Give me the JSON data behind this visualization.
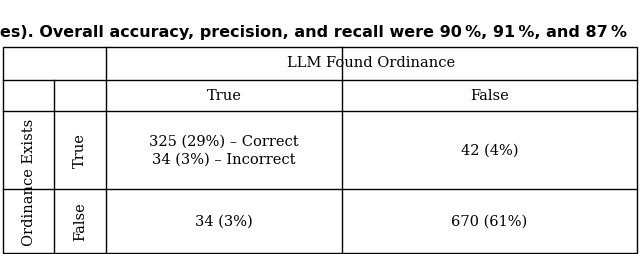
{
  "caption_text": "es). Overall accuracy, precision, and recall were 90 %, 91 %, and 87 %",
  "title_top": "LLM Found Ordinance",
  "col_headers": [
    "True",
    "False"
  ],
  "row_header_outer": "Ordinance Exists",
  "row_headers_inner": [
    "True",
    "False"
  ],
  "cells": [
    [
      "325 (29%) – Correct\n34 (3%) – Incorrect",
      "42 (4%)"
    ],
    [
      "34 (3%)",
      "670 (61%)"
    ]
  ],
  "bg_color": "#ffffff",
  "line_color": "#000000",
  "font_size": 10.5,
  "caption_font_size": 11.5
}
